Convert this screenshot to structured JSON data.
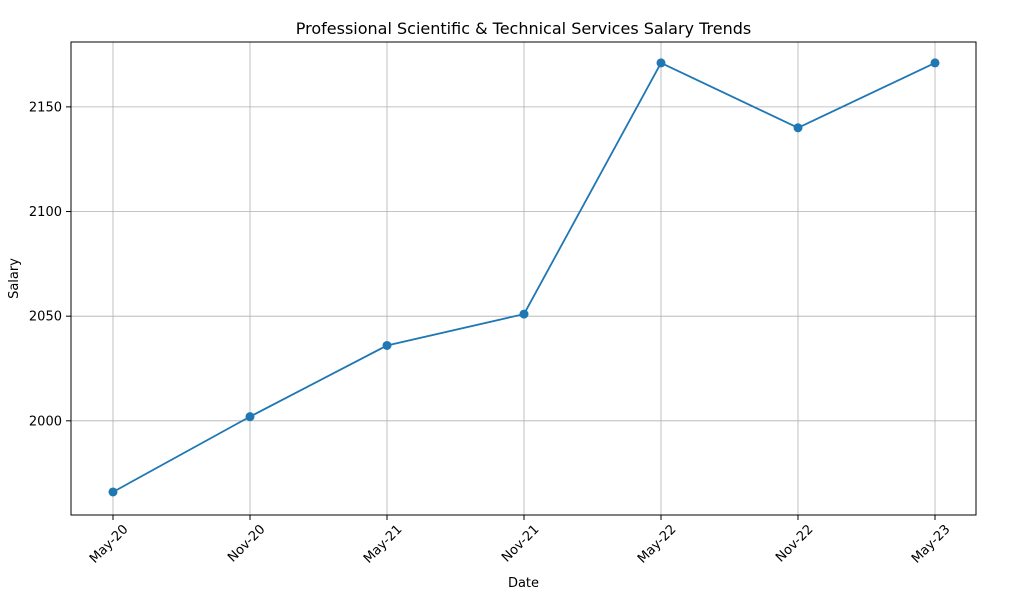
{
  "chart_data": {
    "type": "line",
    "title": "Professional Scientific & Technical Services Salary Trends",
    "xlabel": "Date",
    "ylabel": "Salary",
    "categories": [
      "May-20",
      "Nov-20",
      "May-21",
      "Nov-21",
      "May-22",
      "Nov-22",
      "May-23"
    ],
    "series": [
      {
        "values": [
          1966,
          2002,
          2036,
          2051,
          2171,
          2140,
          2171
        ]
      }
    ],
    "ylim": [
      1955,
      2181
    ],
    "yticks": [
      2000,
      2050,
      2100,
      2150
    ],
    "grid": true,
    "marker": "circle",
    "line_color": "#1f77b4"
  }
}
